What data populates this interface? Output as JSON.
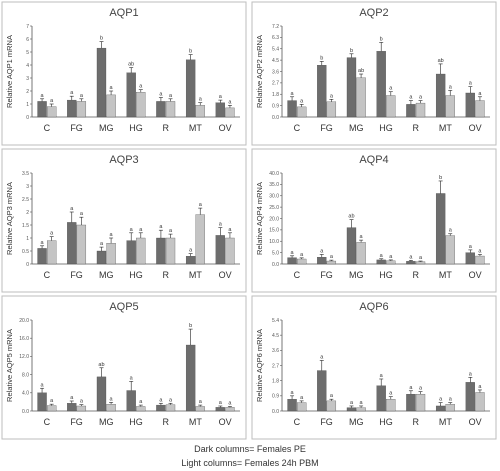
{
  "caption": {
    "line1": "Dark columns= Females PE",
    "line2": "Light columns= Females 24h PBM"
  },
  "colors": {
    "dark": "#6d6d6d",
    "light": "#c4c4c4",
    "frame": "#bdbdbd"
  },
  "chart_data": [
    {
      "type": "bar",
      "title": "AQP1",
      "ylabel": "Relative AQP1 mRNA",
      "categories": [
        "C",
        "FG",
        "MG",
        "HG",
        "R",
        "MT",
        "OV"
      ],
      "ylim": [
        0,
        7
      ],
      "yticks": [
        "0",
        "1",
        "2",
        "3",
        "4",
        "5",
        "6",
        "7"
      ],
      "series": [
        {
          "values": [
            1.2,
            1.3,
            5.3,
            3.4,
            1.2,
            4.4,
            1.1
          ],
          "errors": [
            0.2,
            0.3,
            0.5,
            0.4,
            0.3,
            0.4,
            0.2
          ],
          "letters": [
            "a",
            "a",
            "b",
            "ab",
            "a",
            "b",
            "a"
          ]
        },
        {
          "values": [
            0.8,
            1.2,
            1.7,
            1.9,
            1.2,
            0.9,
            0.7
          ],
          "errors": [
            0.2,
            0.2,
            0.3,
            0.2,
            0.2,
            0.2,
            0.2
          ],
          "letters": [
            "a",
            "a",
            "a",
            "a",
            "a",
            "a",
            "a"
          ]
        }
      ]
    },
    {
      "type": "bar",
      "title": "AQP2",
      "ylabel": "Relative AQP2 mRNA",
      "categories": [
        "C",
        "FG",
        "MG",
        "HG",
        "R",
        "MT",
        "OV"
      ],
      "ylim": [
        0,
        7.2
      ],
      "yticks": [
        "0.0",
        "0.9",
        "1.8",
        "2.7",
        "3.6",
        "4.5",
        "5.4",
        "6.3",
        "7.2"
      ],
      "series": [
        {
          "values": [
            1.3,
            4.1,
            4.7,
            5.2,
            1.0,
            3.4,
            1.9
          ],
          "errors": [
            0.3,
            0.3,
            0.3,
            0.7,
            0.3,
            0.8,
            0.5
          ],
          "letters": [
            "a",
            "b",
            "b",
            "b",
            "a",
            "ab",
            "a"
          ]
        },
        {
          "values": [
            0.8,
            1.2,
            3.1,
            1.7,
            1.1,
            1.7,
            1.3
          ],
          "errors": [
            0.2,
            0.2,
            0.3,
            0.3,
            0.2,
            0.4,
            0.3
          ],
          "letters": [
            "a",
            "a",
            "ab",
            "a",
            "a",
            "a",
            "a"
          ]
        }
      ]
    },
    {
      "type": "bar",
      "title": "AQP3",
      "ylabel": "Relative AQP3 mRNA",
      "categories": [
        "C",
        "FG",
        "MG",
        "HG",
        "R",
        "MT",
        "OV"
      ],
      "ylim": [
        0,
        3.5
      ],
      "yticks": [
        "0",
        "0.5",
        "1",
        "1.5",
        "2",
        "2.5",
        "3",
        "3.5"
      ],
      "series": [
        {
          "values": [
            0.6,
            1.6,
            0.5,
            0.9,
            1.0,
            0.3,
            1.1
          ],
          "errors": [
            0.1,
            0.4,
            0.15,
            0.3,
            0.3,
            0.1,
            0.3
          ],
          "letters": [
            "a",
            "a",
            "a",
            "a",
            "a",
            "a",
            "a"
          ]
        },
        {
          "values": [
            0.9,
            1.5,
            0.8,
            1.0,
            1.0,
            1.9,
            1.0
          ],
          "errors": [
            0.15,
            0.3,
            0.2,
            0.2,
            0.15,
            0.25,
            0.2
          ],
          "letters": [
            "a",
            "a",
            "a",
            "a",
            "a",
            "a",
            "a"
          ]
        }
      ]
    },
    {
      "type": "bar",
      "title": "AQP4",
      "ylabel": "Relative AQP4 mRNA",
      "categories": [
        "C",
        "FG",
        "MG",
        "HG",
        "R",
        "MT",
        "OV"
      ],
      "ylim": [
        0,
        40
      ],
      "yticks": [
        "0.0",
        "5.0",
        "10.0",
        "15.0",
        "20.0",
        "25.0",
        "30.0",
        "35.0",
        "40.0"
      ],
      "series": [
        {
          "values": [
            2.8,
            3.0,
            16.0,
            1.8,
            1.2,
            31.0,
            5.0
          ],
          "errors": [
            0.8,
            1.2,
            3.5,
            0.5,
            0.4,
            5.5,
            1.2
          ],
          "letters": [
            "a",
            "a",
            "ab",
            "a",
            "a",
            "b",
            "a"
          ]
        },
        {
          "values": [
            2.2,
            1.3,
            9.5,
            1.4,
            1.0,
            12.5,
            3.5
          ],
          "errors": [
            0.5,
            0.4,
            1.0,
            0.4,
            0.3,
            0.8,
            0.7
          ],
          "letters": [
            "a",
            "a",
            "a",
            "a",
            "a",
            "a",
            "a"
          ]
        }
      ]
    },
    {
      "type": "bar",
      "title": "AQP5",
      "ylabel": "Relative AQP5 mRNA",
      "categories": [
        "C",
        "FG",
        "MG",
        "HG",
        "R",
        "MT",
        "OV"
      ],
      "ylim": [
        0,
        20
      ],
      "yticks": [
        "0.0",
        "4.0",
        "8.0",
        "12.0",
        "16.0",
        "20.0"
      ],
      "series": [
        {
          "values": [
            4.0,
            1.7,
            7.5,
            4.5,
            1.3,
            14.5,
            0.8
          ],
          "errors": [
            1.0,
            0.5,
            2.0,
            2.0,
            0.4,
            3.5,
            0.3
          ],
          "letters": [
            "a",
            "a",
            "ab",
            "a",
            "a",
            "b",
            "a"
          ]
        },
        {
          "values": [
            1.2,
            1.1,
            1.5,
            1.0,
            1.4,
            1.0,
            0.8
          ],
          "errors": [
            0.3,
            0.3,
            0.4,
            0.3,
            0.3,
            0.3,
            0.2
          ],
          "letters": [
            "a",
            "a",
            "a",
            "a",
            "a",
            "a",
            "a"
          ]
        }
      ]
    },
    {
      "type": "bar",
      "title": "AQP6",
      "ylabel": "Relative AQP6 mRNA",
      "categories": [
        "C",
        "FG",
        "MG",
        "HG",
        "R",
        "MT",
        "OV"
      ],
      "ylim": [
        0,
        5.4
      ],
      "yticks": [
        "0.0",
        "0.9",
        "1.8",
        "2.7",
        "3.6",
        "4.5",
        "5.4"
      ],
      "series": [
        {
          "values": [
            0.7,
            2.4,
            0.2,
            1.5,
            1.0,
            0.3,
            1.7
          ],
          "errors": [
            0.2,
            0.6,
            0.1,
            0.4,
            0.2,
            0.2,
            0.3
          ],
          "letters": [
            "a",
            "a",
            "a",
            "a",
            "a",
            "a",
            "a"
          ]
        },
        {
          "values": [
            0.5,
            0.6,
            0.2,
            0.7,
            1.0,
            0.4,
            1.1
          ],
          "errors": [
            0.1,
            0.1,
            0.1,
            0.15,
            0.15,
            0.1,
            0.15
          ],
          "letters": [
            "a",
            "a",
            "a",
            "a",
            "a",
            "a",
            "a"
          ]
        }
      ]
    }
  ]
}
